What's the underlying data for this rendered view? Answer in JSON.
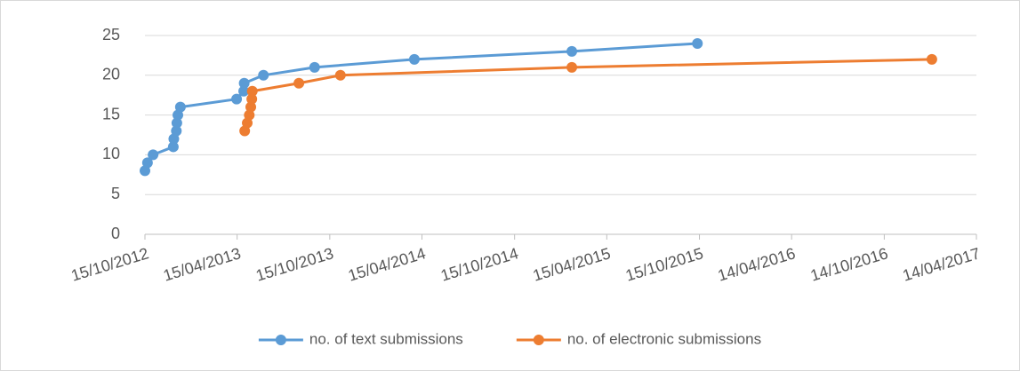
{
  "chart_data": {
    "type": "line",
    "xlim": [
      "15/10/2012",
      "14/04/2017"
    ],
    "xticks": [
      "15/10/2012",
      "15/04/2013",
      "15/10/2013",
      "15/04/2014",
      "15/10/2014",
      "15/04/2015",
      "15/10/2015",
      "14/04/2016",
      "14/10/2016",
      "14/04/2017"
    ],
    "ylim": [
      0,
      25
    ],
    "yticks": [
      0,
      5,
      10,
      15,
      20,
      25
    ],
    "grid": true,
    "legend": "bottom",
    "series": [
      {
        "name": "no. of text submissions",
        "color": "#5b9bd5",
        "x": [
          "15/10/2012",
          "20/10/2012",
          "31/10/2012",
          "10/12/2012",
          "11/12/2012",
          "16/12/2012",
          "17/12/2012",
          "19/12/2012",
          "24/12/2012",
          "14/04/2013",
          "28/04/2013",
          "29/04/2013",
          "06/06/2013",
          "15/09/2013",
          "31/03/2014",
          "05/02/2015",
          "11/10/2015"
        ],
        "values": [
          8,
          9,
          10,
          11,
          12,
          13,
          14,
          15,
          16,
          17,
          18,
          19,
          20,
          21,
          22,
          23,
          24
        ]
      },
      {
        "name": "no. of electronic submissions",
        "color": "#ed7d31",
        "x": [
          "30/04/2013",
          "05/05/2013",
          "09/05/2013",
          "12/05/2013",
          "14/05/2013",
          "15/05/2013",
          "15/08/2013",
          "05/11/2013",
          "05/02/2015",
          "16/01/2017"
        ],
        "values": [
          13,
          14,
          15,
          16,
          17,
          18,
          19,
          20,
          21,
          22
        ]
      }
    ]
  }
}
